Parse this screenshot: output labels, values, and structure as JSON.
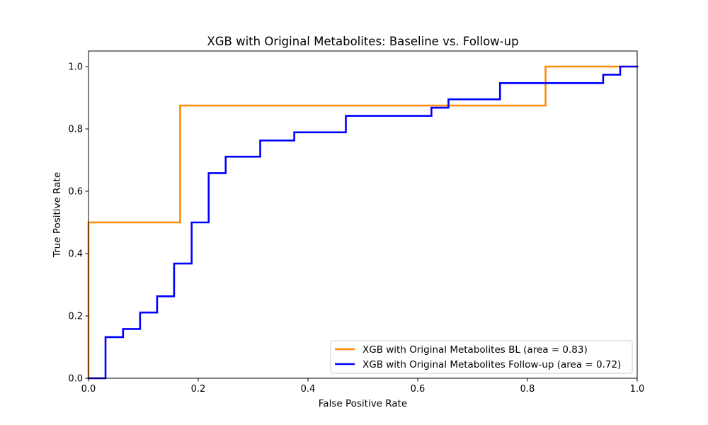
{
  "chart_data": {
    "type": "line",
    "title": "XGB with Original Metabolites: Baseline vs. Follow-up",
    "xlabel": "False Positive Rate",
    "ylabel": "True Positive Rate",
    "xlim": [
      0.0,
      1.0
    ],
    "ylim": [
      0.0,
      1.05
    ],
    "x_ticks": [
      "0.0",
      "0.2",
      "0.4",
      "0.6",
      "0.8",
      "1.0"
    ],
    "y_ticks": [
      "0.0",
      "0.2",
      "0.4",
      "0.6",
      "0.8",
      "1.0"
    ],
    "grid": false,
    "legend_position": "lower-right",
    "series": [
      {
        "name": "XGB with Original Metabolites BL (area = 0.83)",
        "color": "#ff8c00",
        "x": [
          0.0,
          0.0,
          0.167,
          0.167,
          0.833,
          0.833,
          1.0
        ],
        "y": [
          0.0,
          0.5,
          0.5,
          0.875,
          0.875,
          1.0,
          1.0
        ]
      },
      {
        "name": "XGB with Original Metabolites Follow-up (area = 0.72)",
        "color": "#0000ff",
        "x": [
          0.0,
          0.031,
          0.031,
          0.063,
          0.063,
          0.094,
          0.094,
          0.125,
          0.125,
          0.156,
          0.156,
          0.188,
          0.188,
          0.219,
          0.219,
          0.25,
          0.25,
          0.313,
          0.313,
          0.375,
          0.375,
          0.469,
          0.469,
          0.625,
          0.625,
          0.656,
          0.656,
          0.75,
          0.75,
          0.938,
          0.938,
          0.969,
          0.969,
          1.0
        ],
        "y": [
          0.0,
          0.0,
          0.132,
          0.132,
          0.158,
          0.158,
          0.211,
          0.211,
          0.263,
          0.263,
          0.368,
          0.368,
          0.5,
          0.5,
          0.658,
          0.658,
          0.711,
          0.711,
          0.763,
          0.763,
          0.789,
          0.789,
          0.842,
          0.842,
          0.868,
          0.868,
          0.895,
          0.895,
          0.947,
          0.947,
          0.974,
          0.974,
          1.0,
          1.0
        ]
      }
    ]
  }
}
